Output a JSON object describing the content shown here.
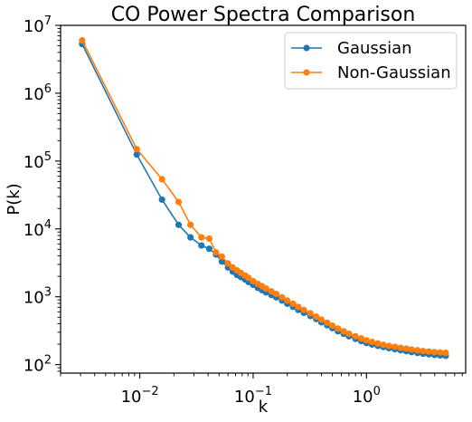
{
  "chart_data": {
    "type": "line",
    "title": "CO Power Spectra Comparison",
    "xlabel": "k",
    "ylabel": "P(k)",
    "xscale": "log",
    "yscale": "log",
    "xlim": [
      0.002,
      7.5
    ],
    "ylim": [
      75,
      10000000
    ],
    "x_ticks": [
      {
        "base": "10",
        "exp": "−2",
        "value": 0.01
      },
      {
        "base": "10",
        "exp": "−1",
        "value": 0.1
      },
      {
        "base": "10",
        "exp": "0",
        "value": 1
      }
    ],
    "y_ticks": [
      {
        "base": "10",
        "exp": "2",
        "value": 100
      },
      {
        "base": "10",
        "exp": "3",
        "value": 1000
      },
      {
        "base": "10",
        "exp": "4",
        "value": 10000
      },
      {
        "base": "10",
        "exp": "5",
        "value": 100000
      },
      {
        "base": "10",
        "exp": "6",
        "value": 1000000
      },
      {
        "base": "10",
        "exp": "7",
        "value": 10000000
      }
    ],
    "legend_position": "top-right",
    "series": [
      {
        "name": "Gaussian",
        "color": "#1f77b4",
        "points": [
          [
            0.0031,
            5300000
          ],
          [
            0.0094,
            125000
          ],
          [
            0.0157,
            27000
          ],
          [
            0.022,
            11500
          ],
          [
            0.028,
            7500
          ],
          [
            0.035,
            5700
          ],
          [
            0.041,
            5100
          ],
          [
            0.047,
            4200
          ],
          [
            0.053,
            3300
          ],
          [
            0.06,
            2700
          ],
          [
            0.066,
            2350
          ],
          [
            0.072,
            2100
          ],
          [
            0.078,
            1950
          ],
          [
            0.085,
            1800
          ],
          [
            0.091,
            1650
          ],
          [
            0.1,
            1500
          ],
          [
            0.11,
            1350
          ],
          [
            0.12,
            1250
          ],
          [
            0.13,
            1160
          ],
          [
            0.145,
            1060
          ],
          [
            0.16,
            980
          ],
          [
            0.18,
            880
          ],
          [
            0.2,
            790
          ],
          [
            0.225,
            710
          ],
          [
            0.25,
            640
          ],
          [
            0.28,
            580
          ],
          [
            0.32,
            520
          ],
          [
            0.36,
            470
          ],
          [
            0.4,
            420
          ],
          [
            0.45,
            380
          ],
          [
            0.5,
            345
          ],
          [
            0.56,
            310
          ],
          [
            0.63,
            285
          ],
          [
            0.7,
            262
          ],
          [
            0.8,
            240
          ],
          [
            0.9,
            222
          ],
          [
            1.0,
            208
          ],
          [
            1.12,
            198
          ],
          [
            1.26,
            189
          ],
          [
            1.41,
            182
          ],
          [
            1.58,
            175
          ],
          [
            1.78,
            169
          ],
          [
            2.0,
            163
          ],
          [
            2.24,
            158
          ],
          [
            2.5,
            153
          ],
          [
            2.82,
            149
          ],
          [
            3.16,
            145
          ],
          [
            3.55,
            142
          ],
          [
            3.98,
            139
          ],
          [
            4.47,
            137
          ],
          [
            5.0,
            135
          ]
        ]
      },
      {
        "name": "Non-Gaussian",
        "color": "#ff7f0e",
        "points": [
          [
            0.0031,
            6000000
          ],
          [
            0.0094,
            150000
          ],
          [
            0.0157,
            54000
          ],
          [
            0.022,
            25000
          ],
          [
            0.028,
            11500
          ],
          [
            0.035,
            7500
          ],
          [
            0.041,
            7200
          ],
          [
            0.047,
            4500
          ],
          [
            0.053,
            3900
          ],
          [
            0.06,
            3100
          ],
          [
            0.066,
            2700
          ],
          [
            0.072,
            2450
          ],
          [
            0.078,
            2250
          ],
          [
            0.085,
            2050
          ],
          [
            0.091,
            1900
          ],
          [
            0.1,
            1700
          ],
          [
            0.11,
            1550
          ],
          [
            0.12,
            1430
          ],
          [
            0.13,
            1320
          ],
          [
            0.145,
            1200
          ],
          [
            0.16,
            1100
          ],
          [
            0.18,
            980
          ],
          [
            0.2,
            880
          ],
          [
            0.225,
            790
          ],
          [
            0.25,
            710
          ],
          [
            0.28,
            640
          ],
          [
            0.32,
            570
          ],
          [
            0.36,
            510
          ],
          [
            0.4,
            460
          ],
          [
            0.45,
            415
          ],
          [
            0.5,
            375
          ],
          [
            0.56,
            340
          ],
          [
            0.63,
            310
          ],
          [
            0.7,
            285
          ],
          [
            0.8,
            262
          ],
          [
            0.9,
            243
          ],
          [
            1.0,
            228
          ],
          [
            1.12,
            216
          ],
          [
            1.26,
            205
          ],
          [
            1.41,
            196
          ],
          [
            1.58,
            189
          ],
          [
            1.78,
            183
          ],
          [
            2.0,
            177
          ],
          [
            2.24,
            172
          ],
          [
            2.5,
            167
          ],
          [
            2.82,
            163
          ],
          [
            3.16,
            159
          ],
          [
            3.55,
            156
          ],
          [
            3.98,
            153
          ],
          [
            4.47,
            151
          ],
          [
            5.0,
            149
          ]
        ]
      }
    ]
  }
}
